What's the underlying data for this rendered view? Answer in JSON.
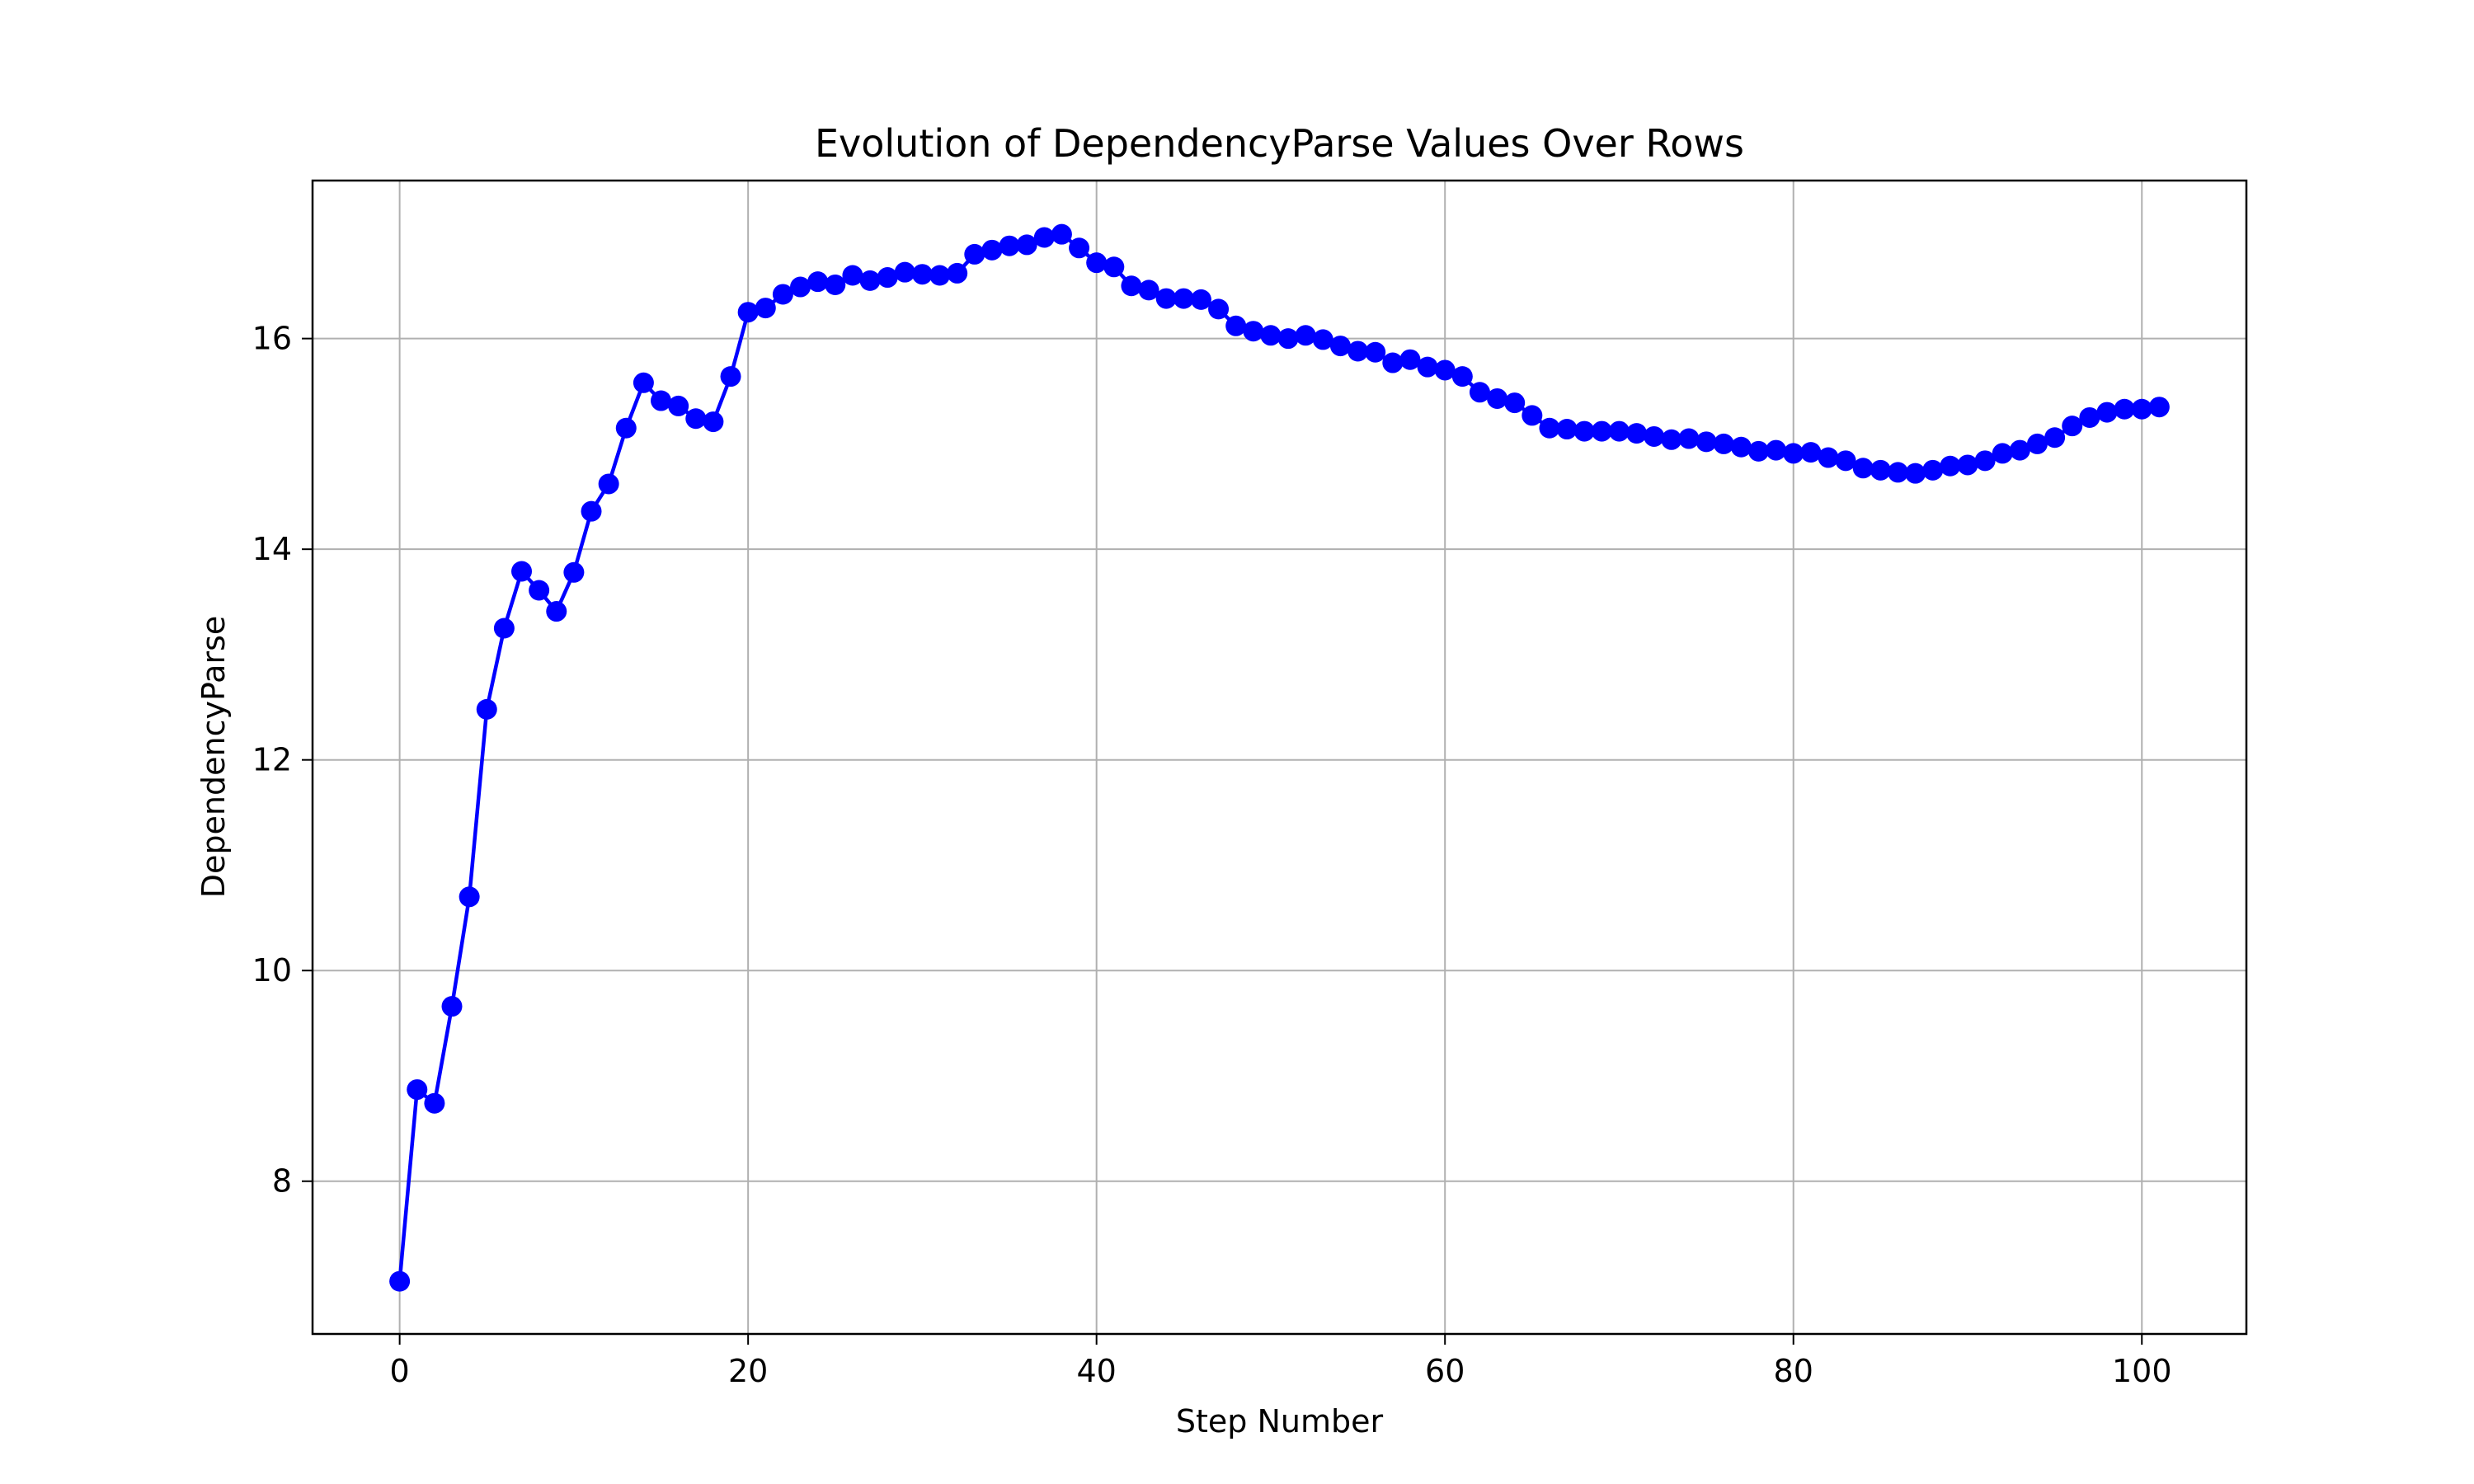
{
  "chart_data": {
    "type": "line",
    "title": "Evolution of DependencyParse Values Over Rows",
    "xlabel": "Step Number",
    "ylabel": "DependencyParse",
    "xlim": [
      -5,
      106
    ],
    "ylim": [
      6.55,
      17.5
    ],
    "xticks": [
      0,
      20,
      40,
      60,
      80,
      100
    ],
    "yticks": [
      8,
      10,
      12,
      14,
      16
    ],
    "grid": true,
    "legend": "none",
    "series": [
      {
        "color": "#0000ff",
        "marker": "circle",
        "x": [
          0,
          1,
          2,
          3,
          4,
          5,
          6,
          7,
          8,
          9,
          10,
          11,
          12,
          13,
          14,
          15,
          16,
          17,
          18,
          19,
          20,
          21,
          22,
          23,
          24,
          25,
          26,
          27,
          28,
          29,
          30,
          31,
          32,
          33,
          34,
          35,
          36,
          37,
          38,
          39,
          40,
          41,
          42,
          43,
          44,
          45,
          46,
          47,
          48,
          49,
          50,
          51,
          52,
          53,
          54,
          55,
          56,
          57,
          58,
          59,
          60,
          61,
          62,
          63,
          64,
          65,
          66,
          67,
          68,
          69,
          70,
          71,
          72,
          73,
          74,
          75,
          76,
          77,
          78,
          79,
          80,
          81,
          82,
          83,
          84,
          85,
          86,
          87,
          88,
          89,
          90,
          91,
          92,
          93,
          94,
          95,
          96,
          97,
          98,
          99,
          100,
          101
        ],
        "y": [
          7.05,
          8.87,
          8.74,
          9.66,
          10.7,
          12.48,
          13.25,
          13.79,
          13.61,
          13.41,
          13.78,
          14.36,
          14.62,
          15.15,
          15.58,
          15.41,
          15.36,
          15.24,
          15.21,
          15.64,
          16.25,
          16.29,
          16.42,
          16.49,
          16.54,
          16.51,
          16.6,
          16.55,
          16.58,
          16.63,
          16.61,
          16.6,
          16.62,
          16.8,
          16.84,
          16.88,
          16.89,
          16.96,
          16.99,
          16.86,
          16.72,
          16.68,
          16.5,
          16.46,
          16.38,
          16.38,
          16.37,
          16.28,
          16.12,
          16.07,
          16.03,
          16.0,
          16.03,
          15.99,
          15.93,
          15.88,
          15.87,
          15.77,
          15.8,
          15.73,
          15.7,
          15.64,
          15.49,
          15.43,
          15.39,
          15.27,
          15.15,
          15.14,
          15.12,
          15.12,
          15.12,
          15.1,
          15.07,
          15.04,
          15.05,
          15.02,
          15.0,
          14.97,
          14.93,
          14.94,
          14.91,
          14.92,
          14.87,
          14.84,
          14.77,
          14.75,
          14.73,
          14.72,
          14.75,
          14.79,
          14.8,
          14.84,
          14.91,
          14.94,
          15.0,
          15.06,
          15.17,
          15.25,
          15.3,
          15.33,
          15.33,
          15.35
        ]
      }
    ]
  }
}
